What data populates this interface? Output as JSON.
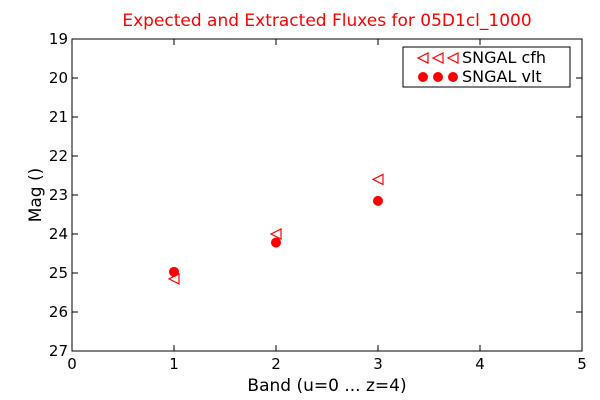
{
  "chart_data": {
    "type": "scatter",
    "title": "Expected and Extracted Fluxes for 05D1cl_1000",
    "xlabel": "Band (u=0 ... z=4)",
    "ylabel": "Mag ()",
    "xlim": [
      0,
      5
    ],
    "ylim": [
      27,
      19
    ],
    "y_inverted": true,
    "grid": false,
    "x_ticks": [
      "0",
      "1",
      "2",
      "3",
      "4",
      "5"
    ],
    "y_ticks": [
      "19",
      "20",
      "21",
      "22",
      "23",
      "24",
      "25",
      "26",
      "27"
    ],
    "legend_position": "top-right",
    "series": [
      {
        "name": "SNGAL cfh",
        "marker": "triangle-left",
        "color": "#ff0000",
        "x": [
          1,
          2,
          3
        ],
        "y": [
          25.15,
          24.0,
          22.6
        ]
      },
      {
        "name": "SNGAL vlt",
        "marker": "circle",
        "color": "#ff0000",
        "x": [
          1,
          2,
          3
        ],
        "y": [
          24.97,
          24.22,
          23.15
        ]
      }
    ],
    "title_color": "#ff0000"
  }
}
